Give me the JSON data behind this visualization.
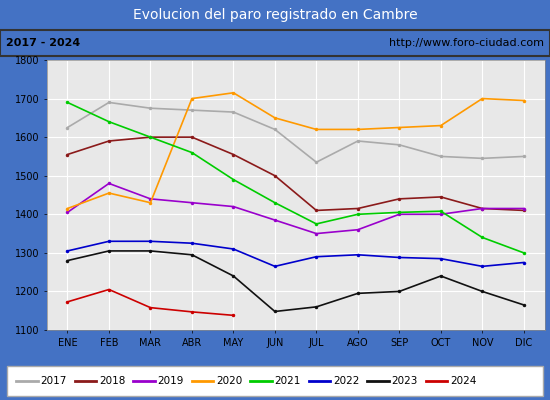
{
  "title": "Evolucion del paro registrado en Cambre",
  "subtitle_left": "2017 - 2024",
  "subtitle_right": "http://www.foro-ciudad.com",
  "months": [
    "ENE",
    "FEB",
    "MAR",
    "ABR",
    "MAY",
    "JUN",
    "JUL",
    "AGO",
    "SEP",
    "OCT",
    "NOV",
    "DIC"
  ],
  "ylim": [
    1100,
    1800
  ],
  "yticks": [
    1100,
    1200,
    1300,
    1400,
    1500,
    1600,
    1700,
    1800
  ],
  "series": {
    "2017": {
      "color": "#aaaaaa",
      "data": [
        1625,
        1690,
        1675,
        1670,
        1665,
        1620,
        1535,
        1590,
        1580,
        1550,
        1545,
        1550
      ]
    },
    "2018": {
      "color": "#8b1a1a",
      "data": [
        1555,
        1590,
        1600,
        1600,
        1555,
        1500,
        1410,
        1415,
        1440,
        1445,
        1415,
        1410
      ]
    },
    "2019": {
      "color": "#9900cc",
      "data": [
        1405,
        1480,
        1440,
        1430,
        1420,
        1385,
        1350,
        1360,
        1400,
        1400,
        1415,
        1415
      ]
    },
    "2020": {
      "color": "#ff9900",
      "data": [
        1415,
        1455,
        1430,
        1700,
        1715,
        1650,
        1620,
        1620,
        1625,
        1630,
        1700,
        1695
      ]
    },
    "2021": {
      "color": "#00cc00",
      "data": [
        1690,
        1640,
        1600,
        1560,
        1490,
        1430,
        1375,
        1400,
        1405,
        1408,
        1340,
        1300
      ]
    },
    "2022": {
      "color": "#0000cc",
      "data": [
        1305,
        1330,
        1330,
        1325,
        1310,
        1265,
        1290,
        1295,
        1288,
        1285,
        1265,
        1275
      ]
    },
    "2023": {
      "color": "#111111",
      "data": [
        1280,
        1305,
        1305,
        1295,
        1240,
        1148,
        1160,
        1195,
        1200,
        1240,
        1200,
        1165
      ]
    },
    "2024": {
      "color": "#cc0000",
      "data": [
        1173,
        1205,
        1158,
        1147,
        1138,
        null,
        null,
        null,
        null,
        null,
        null,
        null
      ]
    }
  },
  "title_bg": "#4472c4",
  "title_color": "#ffffff",
  "title_fontsize": 10,
  "subtitle_bg": "#ffffff",
  "subtitle_color": "#000000",
  "subtitle_fontsize": 8,
  "plot_bg": "#e8e8e8",
  "grid_color": "#ffffff",
  "legend_bg": "#ffffff",
  "legend_border": "#aaaaaa",
  "tick_fontsize": 7,
  "line_width": 1.2
}
